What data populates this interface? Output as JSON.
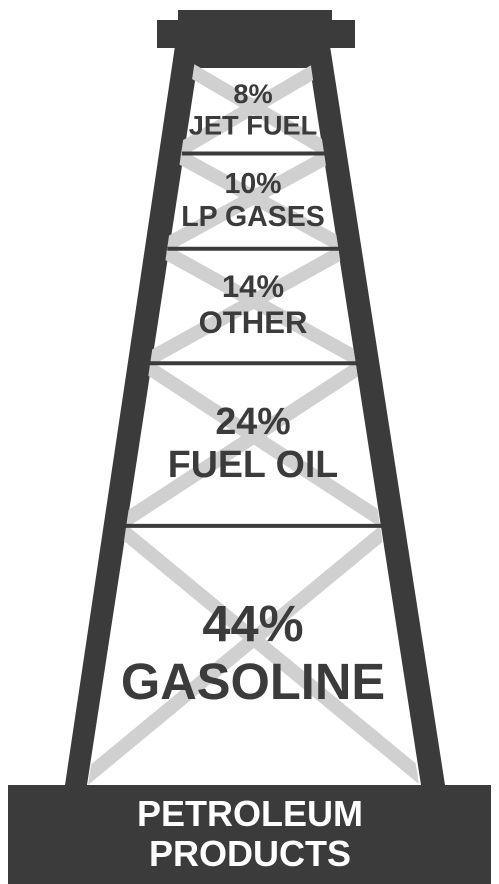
{
  "chart_data": {
    "type": "tower",
    "title": "PETROLEUM PRODUCTS",
    "categories": [
      "JET FUEL",
      "LP GASES",
      "OTHER",
      "FUEL OIL",
      "GASOLINE"
    ],
    "values": [
      8,
      10,
      14,
      24,
      44
    ],
    "value_labels": [
      "8%",
      "10%",
      "14%",
      "24%",
      "44%"
    ],
    "color": "#3b3b3b"
  }
}
